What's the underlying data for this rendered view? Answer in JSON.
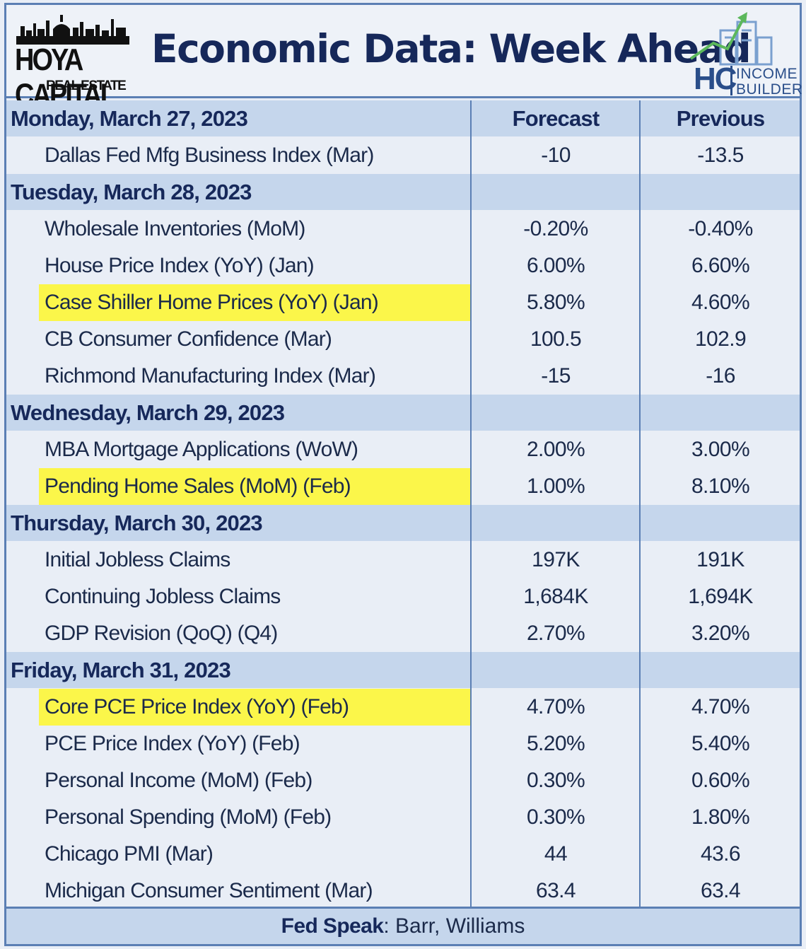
{
  "brand": {
    "left_name": "HOYA CAPITAL",
    "left_sub": "REAL ESTATE",
    "right_mark": "HC",
    "right_line1": "INCOME",
    "right_line2": "BUILDER"
  },
  "title": "Economic Data: Week Ahead",
  "columns": {
    "forecast": "Forecast",
    "previous": "Previous"
  },
  "days": [
    {
      "label": "Monday, March 27, 2023",
      "items": [
        {
          "name": "Dallas Fed Mfg Business Index (Mar)",
          "forecast": "-10",
          "previous": "-13.5",
          "highlight": false
        }
      ]
    },
    {
      "label": "Tuesday, March 28, 2023",
      "items": [
        {
          "name": "Wholesale Inventories (MoM)",
          "forecast": "-0.20%",
          "previous": "-0.40%",
          "highlight": false
        },
        {
          "name": "House Price Index (YoY) (Jan)",
          "forecast": "6.00%",
          "previous": "6.60%",
          "highlight": false
        },
        {
          "name": "Case Shiller Home Prices (YoY) (Jan)",
          "forecast": "5.80%",
          "previous": "4.60%",
          "highlight": true
        },
        {
          "name": "CB Consumer Confidence (Mar)",
          "forecast": "100.5",
          "previous": "102.9",
          "highlight": false
        },
        {
          "name": "Richmond Manufacturing Index (Mar)",
          "forecast": "-15",
          "previous": "-16",
          "highlight": false
        }
      ]
    },
    {
      "label": "Wednesday, March 29, 2023",
      "items": [
        {
          "name": "MBA Mortgage Applications (WoW)",
          "forecast": "2.00%",
          "previous": "3.00%",
          "highlight": false
        },
        {
          "name": "Pending Home Sales (MoM) (Feb)",
          "forecast": "1.00%",
          "previous": "8.10%",
          "highlight": true
        }
      ]
    },
    {
      "label": "Thursday, March 30, 2023",
      "items": [
        {
          "name": "Initial Jobless Claims",
          "forecast": "197K",
          "previous": "191K",
          "highlight": false
        },
        {
          "name": "Continuing Jobless Claims",
          "forecast": "1,684K",
          "previous": "1,694K",
          "highlight": false
        },
        {
          "name": "GDP Revision (QoQ) (Q4)",
          "forecast": "2.70%",
          "previous": "3.20%",
          "highlight": false
        }
      ]
    },
    {
      "label": "Friday, March 31, 2023",
      "items": [
        {
          "name": "Core PCE Price Index (YoY) (Feb)",
          "forecast": "4.70%",
          "previous": "4.70%",
          "highlight": true
        },
        {
          "name": "PCE Price Index (YoY) (Feb)",
          "forecast": "5.20%",
          "previous": "5.40%",
          "highlight": false
        },
        {
          "name": "Personal Income (MoM) (Feb)",
          "forecast": "0.30%",
          "previous": "0.60%",
          "highlight": false
        },
        {
          "name": "Personal Spending (MoM) (Feb)",
          "forecast": "0.30%",
          "previous": "1.80%",
          "highlight": false
        },
        {
          "name": "Chicago PMI (Mar)",
          "forecast": "44",
          "previous": "43.6",
          "highlight": false
        },
        {
          "name": "Michigan Consumer Sentiment (Mar)",
          "forecast": "63.4",
          "previous": "63.4",
          "highlight": false
        }
      ]
    }
  ],
  "footer": {
    "label": "Fed Speak",
    "text": ": Barr, Williams"
  },
  "colors": {
    "highlight": "#fbf64a",
    "day_row": "#c5d6ec",
    "item_row": "#e9eef6",
    "border": "#5b7fb4",
    "title": "#16285a"
  }
}
